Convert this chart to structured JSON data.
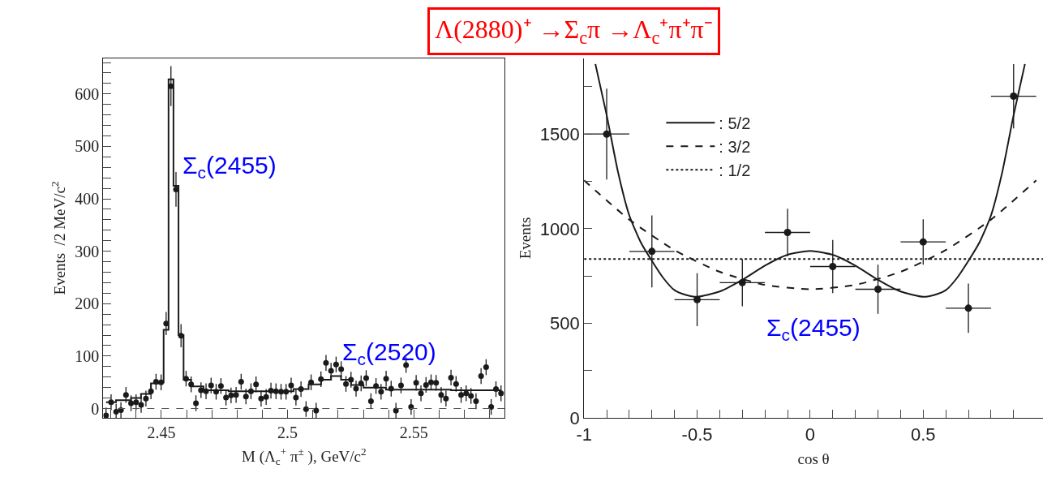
{
  "chart_data": [
    {
      "type": "scatter",
      "title": "Λ(2880)⁺ →Σ$_{c}$π →Λ$_{c}$⁺π⁺π⁻",
      "xlabel": "M (Λ$_{c}$$^{+}$ π$^{±}$ ), GeV/c$^{2}$",
      "ylabel": "Events  /2 MeV/c$^{2}$",
      "xlim": [
        2.427,
        2.586
      ],
      "ylim": [
        -18,
        668
      ],
      "xticks": [
        {
          "value": 2.43,
          "label": null
        },
        {
          "value": 2.44,
          "label": null
        },
        2.45,
        {
          "value": 2.46,
          "label": null
        },
        {
          "value": 2.47,
          "label": null
        },
        {
          "value": 2.48,
          "label": null
        },
        {
          "value": 2.49,
          "label": null
        },
        2.5,
        {
          "value": 2.51,
          "label": null
        },
        {
          "value": 2.52,
          "label": null
        },
        {
          "value": 2.53,
          "label": null
        },
        {
          "value": 2.54,
          "label": null
        },
        2.55,
        {
          "value": 2.56,
          "label": null
        },
        {
          "value": 2.57,
          "label": null
        },
        {
          "value": 2.58,
          "label": null
        }
      ],
      "yticks": [
        0,
        {
          "value": 20,
          "label": null
        },
        {
          "value": 40,
          "label": null
        },
        {
          "value": 60,
          "label": null
        },
        {
          "value": 80,
          "label": null
        },
        100,
        {
          "value": 120,
          "label": null
        },
        {
          "value": 140,
          "label": null
        },
        {
          "value": 160,
          "label": null
        },
        {
          "value": 180,
          "label": null
        },
        200,
        {
          "value": 220,
          "label": null
        },
        {
          "value": 240,
          "label": null
        },
        {
          "value": 260,
          "label": null
        },
        {
          "value": 280,
          "label": null
        },
        300,
        {
          "value": 320,
          "label": null
        },
        {
          "value": 340,
          "label": null
        },
        {
          "value": 360,
          "label": null
        },
        {
          "value": 380,
          "label": null
        },
        400,
        {
          "value": 420,
          "label": null
        },
        {
          "value": 440,
          "label": null
        },
        {
          "value": 460,
          "label": null
        },
        {
          "value": 480,
          "label": null
        },
        500,
        {
          "value": 520,
          "label": null
        },
        {
          "value": 540,
          "label": null
        },
        {
          "value": 560,
          "label": null
        },
        {
          "value": 580,
          "label": null
        },
        600,
        {
          "value": 620,
          "label": null
        },
        {
          "value": 640,
          "label": null
        },
        {
          "value": 660,
          "label": null
        }
      ],
      "x": [
        2.4281,
        2.4301,
        2.4321,
        2.434,
        2.436,
        2.438,
        2.44,
        2.442,
        2.4439,
        2.4459,
        2.4479,
        2.4499,
        2.4519,
        2.4538,
        2.4558,
        2.4578,
        2.4598,
        2.4618,
        2.4637,
        2.4657,
        2.4677,
        2.4697,
        2.4717,
        2.4736,
        2.4756,
        2.4776,
        2.4796,
        2.4816,
        2.4835,
        2.4855,
        2.4875,
        2.4895,
        2.4915,
        2.4934,
        2.4954,
        2.4974,
        2.4994,
        2.5014,
        2.5033,
        2.5053,
        2.5073,
        2.5093,
        2.5113,
        2.5132,
        2.5152,
        2.5172,
        2.5192,
        2.5212,
        2.5231,
        2.5251,
        2.5271,
        2.5291,
        2.5311,
        2.533,
        2.535,
        2.537,
        2.539,
        2.541,
        2.5429,
        2.5449,
        2.5469,
        2.5489,
        2.5509,
        2.5528,
        2.5548,
        2.5568,
        2.5588,
        2.5608,
        2.5627,
        2.5647,
        2.5667,
        2.5687,
        2.5707,
        2.5726,
        2.5746,
        2.5766,
        2.5786,
        2.5806,
        2.5825,
        2.5845
      ],
      "series": [
        {
          "marker": "circle",
          "color": "#1a1a1a",
          "values": [
            -13,
            12,
            -6,
            -3,
            26,
            10,
            12,
            7,
            19,
            33,
            51,
            50,
            162,
            615,
            418,
            139,
            57,
            46,
            10,
            35,
            33,
            44,
            32,
            43,
            21,
            25,
            26,
            51,
            23,
            33,
            46,
            19,
            22,
            34,
            33,
            32,
            32,
            44,
            21,
            37,
            -1,
            50,
            -4,
            56,
            87,
            72,
            84,
            75,
            47,
            55,
            38,
            48,
            58,
            14,
            43,
            32,
            57,
            38,
            -4,
            44,
            83,
            3,
            49,
            29,
            45,
            50,
            49,
            26,
            19,
            59,
            47,
            26,
            29,
            24,
            14,
            62,
            79,
            3,
            37,
            29
          ],
          "errors": [
            15,
            15,
            15,
            15,
            15,
            15,
            15,
            15,
            15,
            15,
            15,
            15,
            22,
            38,
            33,
            22,
            15,
            15,
            15,
            15,
            15,
            15,
            15,
            15,
            15,
            15,
            15,
            15,
            15,
            15,
            15,
            15,
            15,
            15,
            15,
            15,
            15,
            15,
            15,
            15,
            15,
            15,
            15,
            15,
            15,
            15,
            15,
            15,
            15,
            15,
            15,
            15,
            15,
            15,
            15,
            15,
            15,
            15,
            15,
            15,
            15,
            15,
            15,
            15,
            15,
            15,
            15,
            15,
            15,
            15,
            15,
            15,
            15,
            15,
            15,
            15,
            15,
            15,
            15,
            15
          ]
        },
        {
          "type": "step",
          "marker": "none",
          "color": "#1a1a1a",
          "x": [
            2.4281,
            2.436,
            2.44,
            2.4439,
            2.4479,
            2.4499,
            2.4519,
            2.4538,
            2.4558,
            2.4578,
            2.4598,
            2.4637,
            2.4697,
            2.4835,
            2.4994,
            2.5053,
            2.5113,
            2.5152,
            2.5192,
            2.5231,
            2.5271,
            2.533,
            2.5449,
            2.5845
          ],
          "values": [
            12,
            16,
            20,
            28,
            48,
            50,
            150,
            628,
            425,
            140,
            55,
            42,
            35,
            33,
            33,
            37,
            46,
            55,
            62,
            55,
            45,
            40,
            36,
            35
          ]
        }
      ],
      "ref_lines": [
        {
          "axis": "y",
          "value": 0,
          "line_style": "dashed",
          "color": "#555555"
        }
      ],
      "annotations": [
        {
          "text": "Σ$_{c}$(2455)",
          "x": 2.4558,
          "y": 418
        },
        {
          "text": "Σ$_{c}$(2520)",
          "x": 2.5192,
          "y": 62
        }
      ],
      "grid": false,
      "legend": false
    },
    {
      "type": "scatter",
      "xlabel": "cos θ",
      "ylabel": "Events",
      "xlim": [
        -1,
        1.03
      ],
      "ylim": [
        0,
        1900
      ],
      "xticks": [
        -1,
        {
          "value": -0.9,
          "label": null
        },
        {
          "value": -0.8,
          "label": null
        },
        {
          "value": -0.7,
          "label": null
        },
        {
          "value": -0.6,
          "label": null
        },
        -0.5,
        {
          "value": -0.4,
          "label": null
        },
        {
          "value": -0.3,
          "label": null
        },
        {
          "value": -0.2,
          "label": null
        },
        {
          "value": -0.1,
          "label": null
        },
        0,
        {
          "value": 0.1,
          "label": null
        },
        {
          "value": 0.2,
          "label": null
        },
        {
          "value": 0.3,
          "label": null
        },
        {
          "value": 0.4,
          "label": null
        },
        0.5,
        {
          "value": 0.6,
          "label": null
        },
        {
          "value": 0.7,
          "label": null
        },
        {
          "value": 0.8,
          "label": null
        },
        {
          "value": 0.9,
          "label": null
        }
      ],
      "yticks": [
        0,
        {
          "value": 250,
          "label": null
        },
        500,
        {
          "value": 750,
          "label": null
        },
        1000,
        {
          "value": 1250,
          "label": null
        },
        1500,
        {
          "value": 1750,
          "label": null
        }
      ],
      "x": [
        -0.9,
        -0.7,
        -0.5,
        -0.3,
        -0.1,
        0.1,
        0.3,
        0.5,
        0.7,
        0.9
      ],
      "series": [
        {
          "marker": "circle",
          "color": "#1a1a1a",
          "values": [
            1500,
            880,
            625,
            715,
            980,
            800,
            680,
            930,
            580,
            1700
          ],
          "errors": [
            240,
            190,
            140,
            125,
            125,
            140,
            130,
            120,
            130,
            170
          ],
          "xerrors": [
            0.1,
            0.1,
            0.1,
            0.1,
            0.1,
            0.1,
            0.1,
            0.1,
            0.1,
            0.1
          ]
        },
        {
          "type": "line",
          "marker": "none",
          "name": ": 5/2",
          "color": "#1a1a1a",
          "line_style": "solid",
          "x": [
            -0.95,
            -0.9,
            -0.85,
            -0.8,
            -0.75,
            -0.7,
            -0.65,
            -0.6,
            -0.55,
            -0.5,
            -0.4,
            -0.3,
            -0.2,
            -0.1,
            0,
            0.1,
            0.2,
            0.3,
            0.4,
            0.5,
            0.55,
            0.6,
            0.65,
            0.7,
            0.75,
            0.8,
            0.85,
            0.9,
            0.95
          ],
          "values": [
            1870,
            1600,
            1300,
            1070,
            930,
            830,
            740,
            675,
            650,
            640,
            668,
            730,
            805,
            862,
            882,
            862,
            805,
            730,
            668,
            640,
            650,
            675,
            740,
            830,
            930,
            1070,
            1300,
            1600,
            1870
          ]
        },
        {
          "type": "line",
          "marker": "none",
          "name": ": 3/2",
          "color": "#1a1a1a",
          "line_style": "dashed",
          "x": [
            -1,
            -0.8,
            -0.6,
            -0.4,
            -0.2,
            0,
            0.2,
            0.4,
            0.6,
            0.8,
            1
          ],
          "values": [
            1255,
            1048,
            887,
            772,
            703,
            680,
            703,
            772,
            887,
            1048,
            1255
          ]
        },
        {
          "type": "line",
          "marker": "none",
          "name": ": 1/2",
          "color": "#1a1a1a",
          "line_style": "dotted",
          "x": [
            -1,
            1.03
          ],
          "values": [
            840,
            840
          ]
        }
      ],
      "annotations": [
        "Σ$_{c}$(2455)"
      ],
      "grid": false,
      "legend": "top left"
    }
  ]
}
